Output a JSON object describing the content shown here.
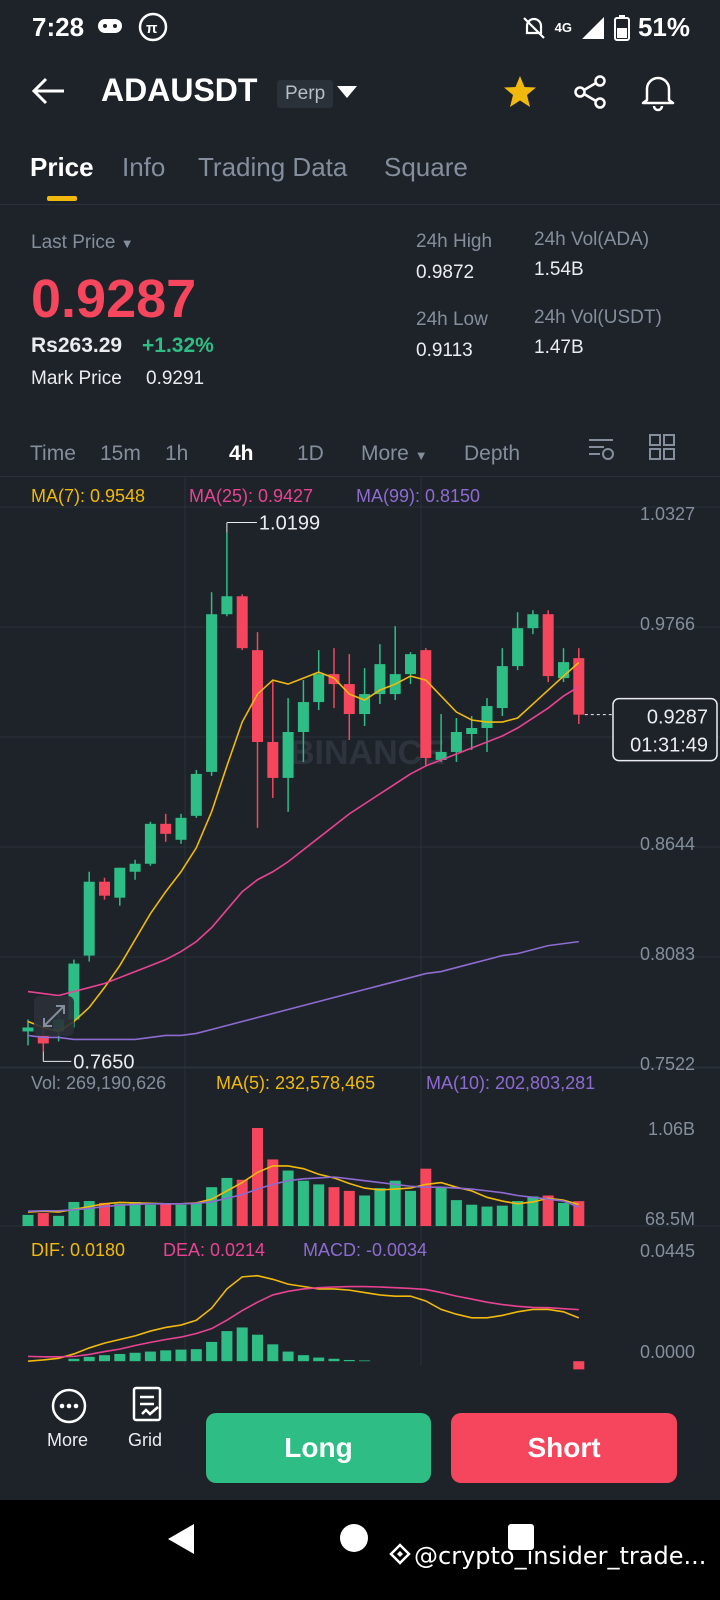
{
  "status": {
    "time": "7:28",
    "battery": "51%",
    "network": "4G"
  },
  "header": {
    "symbol": "ADAUSDT",
    "contract": "Perp"
  },
  "tabs": [
    {
      "label": "Price"
    },
    {
      "label": "Info"
    },
    {
      "label": "Trading Data"
    },
    {
      "label": "Square"
    }
  ],
  "ticker": {
    "last_price_label": "Last Price",
    "last_price": "0.9287",
    "local_price": "Rs263.29",
    "change": "+1.32%",
    "mark_label": "Mark Price",
    "mark_price": "0.9291",
    "high_label": "24h High",
    "high": "0.9872",
    "low_label": "24h Low",
    "low": "0.9113",
    "vol_ada_label": "24h Vol(ADA)",
    "vol_ada": "1.54B",
    "vol_usdt_label": "24h Vol(USDT)",
    "vol_usdt": "1.47B"
  },
  "intervals": {
    "time": "Time",
    "m15": "15m",
    "h1": "1h",
    "h4": "4h",
    "d1": "1D",
    "more": "More",
    "depth": "Depth"
  },
  "ma": {
    "ma7": "MA(7): 0.9548",
    "ma25": "MA(25): 0.9427",
    "ma99": "MA(99): 0.8150"
  },
  "price_axis": [
    "1.0327",
    "0.9766",
    "0.8644",
    "0.8083",
    "0.7522"
  ],
  "price_annotations": {
    "high_mark": "1.0199",
    "low_mark": "0.7650",
    "current": "0.9287",
    "countdown": "01:31:49"
  },
  "watermark": "BINANCE",
  "volume": {
    "vol": "Vol: 269,190,626",
    "ma5": "MA(5): 232,578,465",
    "ma10": "MA(10): 202,803,281",
    "axis_top": "1.06B",
    "axis_bottom": "68.5M"
  },
  "macd": {
    "dif": "DIF: 0.0180",
    "dea": "DEA: 0.0214",
    "macd": "MACD: -0.0034",
    "axis_top": "0.0445",
    "axis_bottom": "0.0000"
  },
  "bottom": {
    "more": "More",
    "grid": "Grid",
    "long": "Long",
    "short": "Short"
  },
  "overlay_text": "@crypto_insider_trade...",
  "colors": {
    "up": "#2ebd85",
    "down": "#f6465d",
    "accent": "#f0b90b",
    "ma7": "#f0b90b",
    "ma25": "#e84393",
    "ma99": "#8e6bd1"
  },
  "chart_data": {
    "type": "candlestick",
    "interval": "4h",
    "ylim": [
      0.7522,
      1.0327
    ],
    "candles": [
      {
        "o": 0.77,
        "h": 0.776,
        "l": 0.763,
        "c": 0.772
      },
      {
        "o": 0.768,
        "h": 0.772,
        "l": 0.76,
        "c": 0.764
      },
      {
        "o": 0.77,
        "h": 0.78,
        "l": 0.765,
        "c": 0.776
      },
      {
        "o": 0.776,
        "h": 0.806,
        "l": 0.772,
        "c": 0.804
      },
      {
        "o": 0.808,
        "h": 0.85,
        "l": 0.805,
        "c": 0.845
      },
      {
        "o": 0.845,
        "h": 0.847,
        "l": 0.836,
        "c": 0.838
      },
      {
        "o": 0.837,
        "h": 0.852,
        "l": 0.833,
        "c": 0.852
      },
      {
        "o": 0.85,
        "h": 0.856,
        "l": 0.846,
        "c": 0.854
      },
      {
        "o": 0.854,
        "h": 0.875,
        "l": 0.853,
        "c": 0.874
      },
      {
        "o": 0.874,
        "h": 0.879,
        "l": 0.865,
        "c": 0.869
      },
      {
        "o": 0.866,
        "h": 0.879,
        "l": 0.864,
        "c": 0.877
      },
      {
        "o": 0.878,
        "h": 0.901,
        "l": 0.877,
        "c": 0.899
      },
      {
        "o": 0.9,
        "h": 0.99,
        "l": 0.898,
        "c": 0.979
      },
      {
        "o": 0.979,
        "h": 1.0199,
        "l": 0.978,
        "c": 0.988
      },
      {
        "o": 0.988,
        "h": 0.989,
        "l": 0.961,
        "c": 0.962
      },
      {
        "o": 0.961,
        "h": 0.97,
        "l": 0.872,
        "c": 0.915
      },
      {
        "o": 0.915,
        "h": 0.946,
        "l": 0.887,
        "c": 0.897
      },
      {
        "o": 0.897,
        "h": 0.937,
        "l": 0.88,
        "c": 0.92
      },
      {
        "o": 0.92,
        "h": 0.946,
        "l": 0.905,
        "c": 0.935
      },
      {
        "o": 0.935,
        "h": 0.961,
        "l": 0.931,
        "c": 0.949
      },
      {
        "o": 0.949,
        "h": 0.962,
        "l": 0.932,
        "c": 0.944
      },
      {
        "o": 0.944,
        "h": 0.959,
        "l": 0.916,
        "c": 0.929
      },
      {
        "o": 0.929,
        "h": 0.952,
        "l": 0.923,
        "c": 0.939
      },
      {
        "o": 0.939,
        "h": 0.964,
        "l": 0.934,
        "c": 0.954
      },
      {
        "o": 0.939,
        "h": 0.973,
        "l": 0.936,
        "c": 0.949
      },
      {
        "o": 0.949,
        "h": 0.96,
        "l": 0.944,
        "c": 0.959
      },
      {
        "o": 0.961,
        "h": 0.962,
        "l": 0.903,
        "c": 0.907
      },
      {
        "o": 0.906,
        "h": 0.929,
        "l": 0.905,
        "c": 0.91
      },
      {
        "o": 0.91,
        "h": 0.927,
        "l": 0.905,
        "c": 0.92
      },
      {
        "o": 0.919,
        "h": 0.928,
        "l": 0.911,
        "c": 0.922
      },
      {
        "o": 0.922,
        "h": 0.937,
        "l": 0.91,
        "c": 0.933
      },
      {
        "o": 0.932,
        "h": 0.962,
        "l": 0.928,
        "c": 0.953
      },
      {
        "o": 0.953,
        "h": 0.98,
        "l": 0.951,
        "c": 0.972
      },
      {
        "o": 0.972,
        "h": 0.981,
        "l": 0.969,
        "c": 0.979
      },
      {
        "o": 0.979,
        "h": 0.981,
        "l": 0.945,
        "c": 0.948
      },
      {
        "o": 0.947,
        "h": 0.962,
        "l": 0.945,
        "c": 0.955
      },
      {
        "o": 0.957,
        "h": 0.962,
        "l": 0.924,
        "c": 0.9287
      }
    ],
    "ma7": [
      0.775,
      0.772,
      0.77,
      0.775,
      0.782,
      0.792,
      0.803,
      0.816,
      0.829,
      0.84,
      0.85,
      0.862,
      0.88,
      0.903,
      0.925,
      0.939,
      0.946,
      0.944,
      0.947,
      0.95,
      0.947,
      0.939,
      0.936,
      0.941,
      0.944,
      0.948,
      0.946,
      0.938,
      0.93,
      0.926,
      0.925,
      0.925,
      0.927,
      0.934,
      0.941,
      0.948,
      0.9548
    ],
    "ma25": [
      0.79,
      0.789,
      0.788,
      0.79,
      0.792,
      0.794,
      0.797,
      0.8,
      0.803,
      0.806,
      0.81,
      0.815,
      0.822,
      0.831,
      0.84,
      0.846,
      0.85,
      0.855,
      0.861,
      0.867,
      0.873,
      0.879,
      0.884,
      0.889,
      0.894,
      0.899,
      0.903,
      0.906,
      0.909,
      0.912,
      0.915,
      0.918,
      0.922,
      0.927,
      0.932,
      0.938,
      0.9427
    ],
    "ma99": [
      0.768,
      0.767,
      0.767,
      0.766,
      0.766,
      0.766,
      0.766,
      0.766,
      0.767,
      0.768,
      0.768,
      0.769,
      0.771,
      0.773,
      0.775,
      0.777,
      0.779,
      0.781,
      0.783,
      0.785,
      0.787,
      0.789,
      0.791,
      0.793,
      0.795,
      0.797,
      0.799,
      0.8,
      0.802,
      0.804,
      0.806,
      0.808,
      0.809,
      0.811,
      0.813,
      0.814,
      0.815
    ],
    "volume_ylim": [
      0,
      1060
    ],
    "volumes": [
      120,
      140,
      110,
      260,
      270,
      250,
      240,
      260,
      230,
      240,
      230,
      250,
      420,
      520,
      500,
      1060,
      720,
      600,
      490,
      450,
      420,
      380,
      330,
      410,
      490,
      380,
      620,
      420,
      280,
      230,
      210,
      220,
      270,
      320,
      330,
      250,
      269
    ],
    "vol_ma5": [
      150,
      160,
      150,
      180,
      210,
      240,
      255,
      250,
      245,
      240,
      240,
      250,
      290,
      380,
      470,
      580,
      650,
      650,
      620,
      560,
      520,
      460,
      410,
      390,
      400,
      410,
      450,
      470,
      420,
      380,
      310,
      270,
      240,
      260,
      300,
      280,
      232.6
    ],
    "vol_ma10": [
      160,
      165,
      165,
      175,
      190,
      210,
      225,
      235,
      240,
      240,
      240,
      245,
      260,
      300,
      340,
      400,
      450,
      490,
      510,
      520,
      530,
      510,
      490,
      470,
      450,
      430,
      420,
      420,
      410,
      400,
      380,
      360,
      330,
      310,
      290,
      270,
      202.8
    ],
    "macd_ylim": [
      -0.002,
      0.0445
    ],
    "dif": [
      0.0,
      0.0005,
      0.0012,
      0.003,
      0.0055,
      0.0075,
      0.009,
      0.0105,
      0.0125,
      0.014,
      0.015,
      0.017,
      0.022,
      0.03,
      0.035,
      0.0355,
      0.034,
      0.032,
      0.031,
      0.03,
      0.03,
      0.0295,
      0.0285,
      0.0275,
      0.027,
      0.027,
      0.025,
      0.0215,
      0.0195,
      0.018,
      0.018,
      0.019,
      0.0205,
      0.0215,
      0.0215,
      0.0205,
      0.018
    ],
    "dea": [
      0.002,
      0.0018,
      0.0018,
      0.002,
      0.0028,
      0.004,
      0.005,
      0.0065,
      0.0078,
      0.009,
      0.01,
      0.0115,
      0.0135,
      0.017,
      0.021,
      0.0245,
      0.0275,
      0.029,
      0.03,
      0.0305,
      0.0308,
      0.031,
      0.031,
      0.0308,
      0.0305,
      0.0302,
      0.0298,
      0.0285,
      0.027,
      0.0258,
      0.0245,
      0.0235,
      0.0228,
      0.0223,
      0.0222,
      0.0218,
      0.0214
    ],
    "macd_hist": [
      0.0,
      0.0,
      0.0,
      0.001,
      0.0018,
      0.0025,
      0.003,
      0.0035,
      0.004,
      0.0045,
      0.0048,
      0.005,
      0.008,
      0.0125,
      0.014,
      0.011,
      0.007,
      0.004,
      0.0025,
      0.0015,
      0.001,
      0.0005,
      0.0003,
      0.0,
      0,
      0,
      0,
      0,
      0,
      0,
      0,
      0,
      0,
      0,
      0,
      0,
      -0.0034
    ]
  }
}
